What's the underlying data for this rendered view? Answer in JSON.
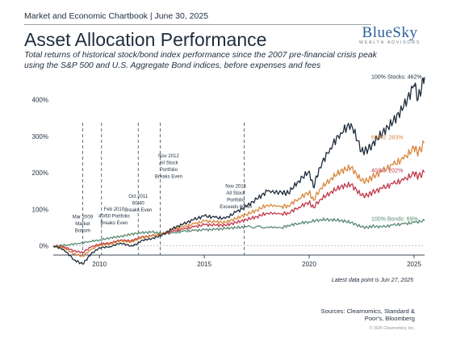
{
  "header": {
    "kicker": "Market and Economic Chartbook | June 30, 2025",
    "title": "Asset Allocation Performance",
    "subtitle": "Total returns of historical stock/bond index performance since the 2007 pre-financial crisis peak using the S&P 500 and U.S. Aggregate Bond indices, before expenses and fees"
  },
  "logo": {
    "main": "BlueSky",
    "sub": "WEALTH ADVISORS",
    "color": "#2a5e9a"
  },
  "chart_data": {
    "type": "line",
    "title": "Asset Allocation Performance",
    "xlabel": "",
    "ylabel": "",
    "x_range": [
      2007.8,
      2025.5
    ],
    "ylim": [
      -25,
      470
    ],
    "x_ticks": [
      2010,
      2015,
      2020,
      2025
    ],
    "x_tick_labels": [
      "2010",
      "2015",
      "2020",
      "2025"
    ],
    "y_ticks": [
      0,
      100,
      200,
      300,
      400
    ],
    "y_tick_labels": [
      "0%",
      "100%",
      "200%",
      "300%",
      "400%"
    ],
    "grid": false,
    "series": [
      {
        "key": "stocks",
        "end_label": "100% Stocks: 462%",
        "color": "#1f2d3d",
        "x": [
          2007.8,
          2008.3,
          2008.8,
          2009.2,
          2009.6,
          2010.0,
          2010.5,
          2011.0,
          2011.5,
          2011.8,
          2012.0,
          2012.5,
          2013.0,
          2013.5,
          2014.0,
          2014.5,
          2015.0,
          2015.5,
          2016.0,
          2016.5,
          2017.0,
          2017.5,
          2018.0,
          2018.7,
          2019.0,
          2019.5,
          2020.0,
          2020.2,
          2020.5,
          2021.0,
          2021.5,
          2022.0,
          2022.5,
          2022.8,
          2023.0,
          2023.5,
          2024.0,
          2024.5,
          2025.0,
          2025.2,
          2025.5
        ],
        "values": [
          0,
          -10,
          -38,
          -50,
          -22,
          -5,
          -2,
          8,
          0,
          5,
          15,
          20,
          30,
          48,
          60,
          72,
          82,
          78,
          75,
          92,
          108,
          128,
          150,
          145,
          145,
          178,
          205,
          160,
          215,
          268,
          310,
          335,
          260,
          262,
          278,
          310,
          340,
          380,
          440,
          405,
          462
        ]
      },
      {
        "key": "s6040",
        "end_label": "60/40: 283%",
        "color": "#d9873d",
        "x": [
          2007.8,
          2008.3,
          2008.8,
          2009.2,
          2009.6,
          2010.0,
          2010.5,
          2011.0,
          2011.5,
          2012.0,
          2012.5,
          2013.0,
          2013.5,
          2014.0,
          2014.5,
          2015.0,
          2015.5,
          2016.0,
          2016.5,
          2017.0,
          2017.5,
          2018.0,
          2018.7,
          2019.0,
          2019.5,
          2020.0,
          2020.2,
          2020.5,
          2021.0,
          2021.5,
          2022.0,
          2022.5,
          2022.8,
          2023.0,
          2023.5,
          2024.0,
          2024.5,
          2025.0,
          2025.2,
          2025.5
        ],
        "values": [
          0,
          -5,
          -22,
          -28,
          -10,
          2,
          5,
          14,
          10,
          22,
          27,
          33,
          45,
          52,
          60,
          68,
          66,
          64,
          75,
          86,
          98,
          112,
          108,
          110,
          130,
          148,
          125,
          155,
          182,
          205,
          215,
          178,
          178,
          188,
          205,
          222,
          238,
          268,
          255,
          283
        ]
      },
      {
        "key": "s4060",
        "end_label": "40/60: 202%",
        "color": "#c0394b",
        "x": [
          2007.8,
          2008.3,
          2008.8,
          2009.2,
          2009.6,
          2010.0,
          2010.5,
          2011.0,
          2011.5,
          2012.0,
          2012.5,
          2013.0,
          2013.5,
          2014.0,
          2014.5,
          2015.0,
          2015.5,
          2016.0,
          2016.5,
          2017.0,
          2017.5,
          2018.0,
          2018.7,
          2019.0,
          2019.5,
          2020.0,
          2020.2,
          2020.5,
          2021.0,
          2021.5,
          2022.0,
          2022.5,
          2022.8,
          2023.0,
          2023.5,
          2024.0,
          2024.5,
          2025.0,
          2025.2,
          2025.5
        ],
        "values": [
          0,
          -2,
          -14,
          -18,
          -3,
          5,
          8,
          16,
          14,
          24,
          28,
          32,
          40,
          46,
          52,
          58,
          57,
          56,
          64,
          72,
          80,
          90,
          88,
          90,
          106,
          120,
          105,
          126,
          146,
          162,
          168,
          138,
          138,
          146,
          158,
          170,
          180,
          198,
          190,
          202
        ]
      },
      {
        "key": "bonds",
        "end_label": "100% Bonds: 69%",
        "color": "#5a8a72",
        "x": [
          2007.8,
          2008.5,
          2009.0,
          2009.5,
          2010.0,
          2010.5,
          2011.0,
          2011.5,
          2012.0,
          2012.5,
          2013.0,
          2013.5,
          2014.0,
          2014.5,
          2015.0,
          2015.5,
          2016.0,
          2016.5,
          2017.0,
          2018.0,
          2018.7,
          2019.0,
          2019.5,
          2020.0,
          2020.5,
          2021.0,
          2021.5,
          2022.0,
          2022.5,
          2022.8,
          2023.0,
          2023.5,
          2024.0,
          2024.5,
          2025.0,
          2025.5
        ],
        "values": [
          0,
          3,
          7,
          12,
          16,
          22,
          26,
          32,
          36,
          38,
          34,
          35,
          40,
          42,
          44,
          45,
          48,
          50,
          52,
          52,
          50,
          56,
          62,
          66,
          72,
          72,
          70,
          64,
          52,
          50,
          54,
          52,
          57,
          60,
          64,
          69
        ]
      }
    ],
    "events": [
      {
        "x": 2009.2,
        "lines": [
          "Mar 2009",
          "Market",
          "Bottom"
        ],
        "label_x": 2009.2,
        "label_y": 75
      },
      {
        "x": 2010.1,
        "lines": [
          "Feb 2010",
          "40/60 Portfolio",
          "Breaks Even"
        ],
        "label_x": 2010.7,
        "label_y": 97
      },
      {
        "x": 2011.85,
        "lines": [
          "Oct 2011",
          "60/40",
          "Breaks Even"
        ],
        "label_x": 2011.85,
        "label_y": 132
      },
      {
        "x": 2012.9,
        "lines": [
          "Nov 2012",
          "All Stock",
          "Portfolio",
          "Breaks Even"
        ],
        "label_x": 2013.3,
        "label_y": 242
      },
      {
        "x": 2016.9,
        "lines": [
          "Nov 2016",
          "All Stock",
          "Portfolio",
          "Exceeds 60/40"
        ],
        "label_x": 2016.5,
        "label_y": 160
      }
    ]
  },
  "footnote": "Latest data point is Jun 27, 2025",
  "sources": "Sources: Clearnomics, Standard & Poor's, Bloomberg",
  "copyright": "© 2025 Clearnomics, Inc."
}
